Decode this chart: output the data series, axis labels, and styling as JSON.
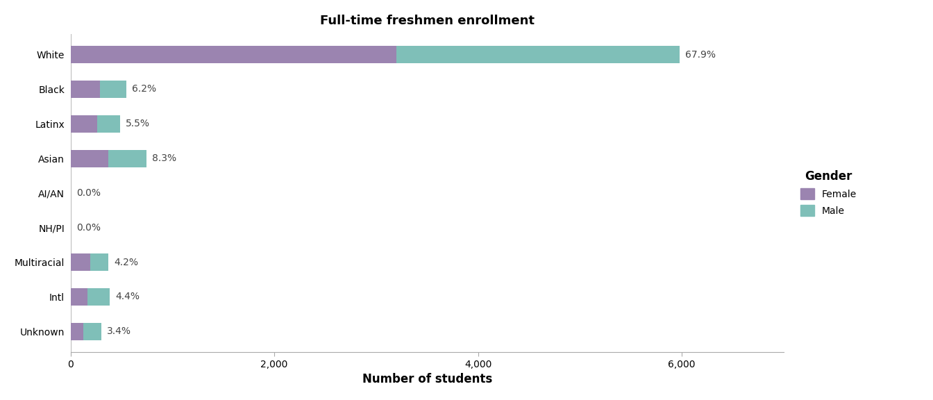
{
  "categories": [
    "White",
    "Black",
    "Latinx",
    "Asian",
    "AI/AN",
    "NH/PI",
    "Multiracial",
    "Intl",
    "Unknown"
  ],
  "female_values": [
    3200,
    290,
    260,
    370,
    3,
    3,
    195,
    170,
    125
  ],
  "male_values": [
    2780,
    255,
    225,
    375,
    3,
    3,
    175,
    215,
    175
  ],
  "percentages": [
    "67.9%",
    "6.2%",
    "5.5%",
    "8.3%",
    "0.0%",
    "0.0%",
    "4.2%",
    "4.4%",
    "3.4%"
  ],
  "female_color": "#9b84b0",
  "male_color": "#7fbfb8",
  "title": "Full-time freshmen enrollment",
  "xlabel": "Number of students",
  "xlim": [
    0,
    7000
  ],
  "xticks": [
    0,
    2000,
    4000,
    6000
  ],
  "xticklabels": [
    "0",
    "2,000",
    "4,000",
    "6,000"
  ],
  "background_color": "#ffffff",
  "title_fontsize": 13,
  "axis_label_fontsize": 12,
  "tick_fontsize": 10,
  "legend_title": "Gender",
  "legend_labels": [
    "Female",
    "Male"
  ]
}
